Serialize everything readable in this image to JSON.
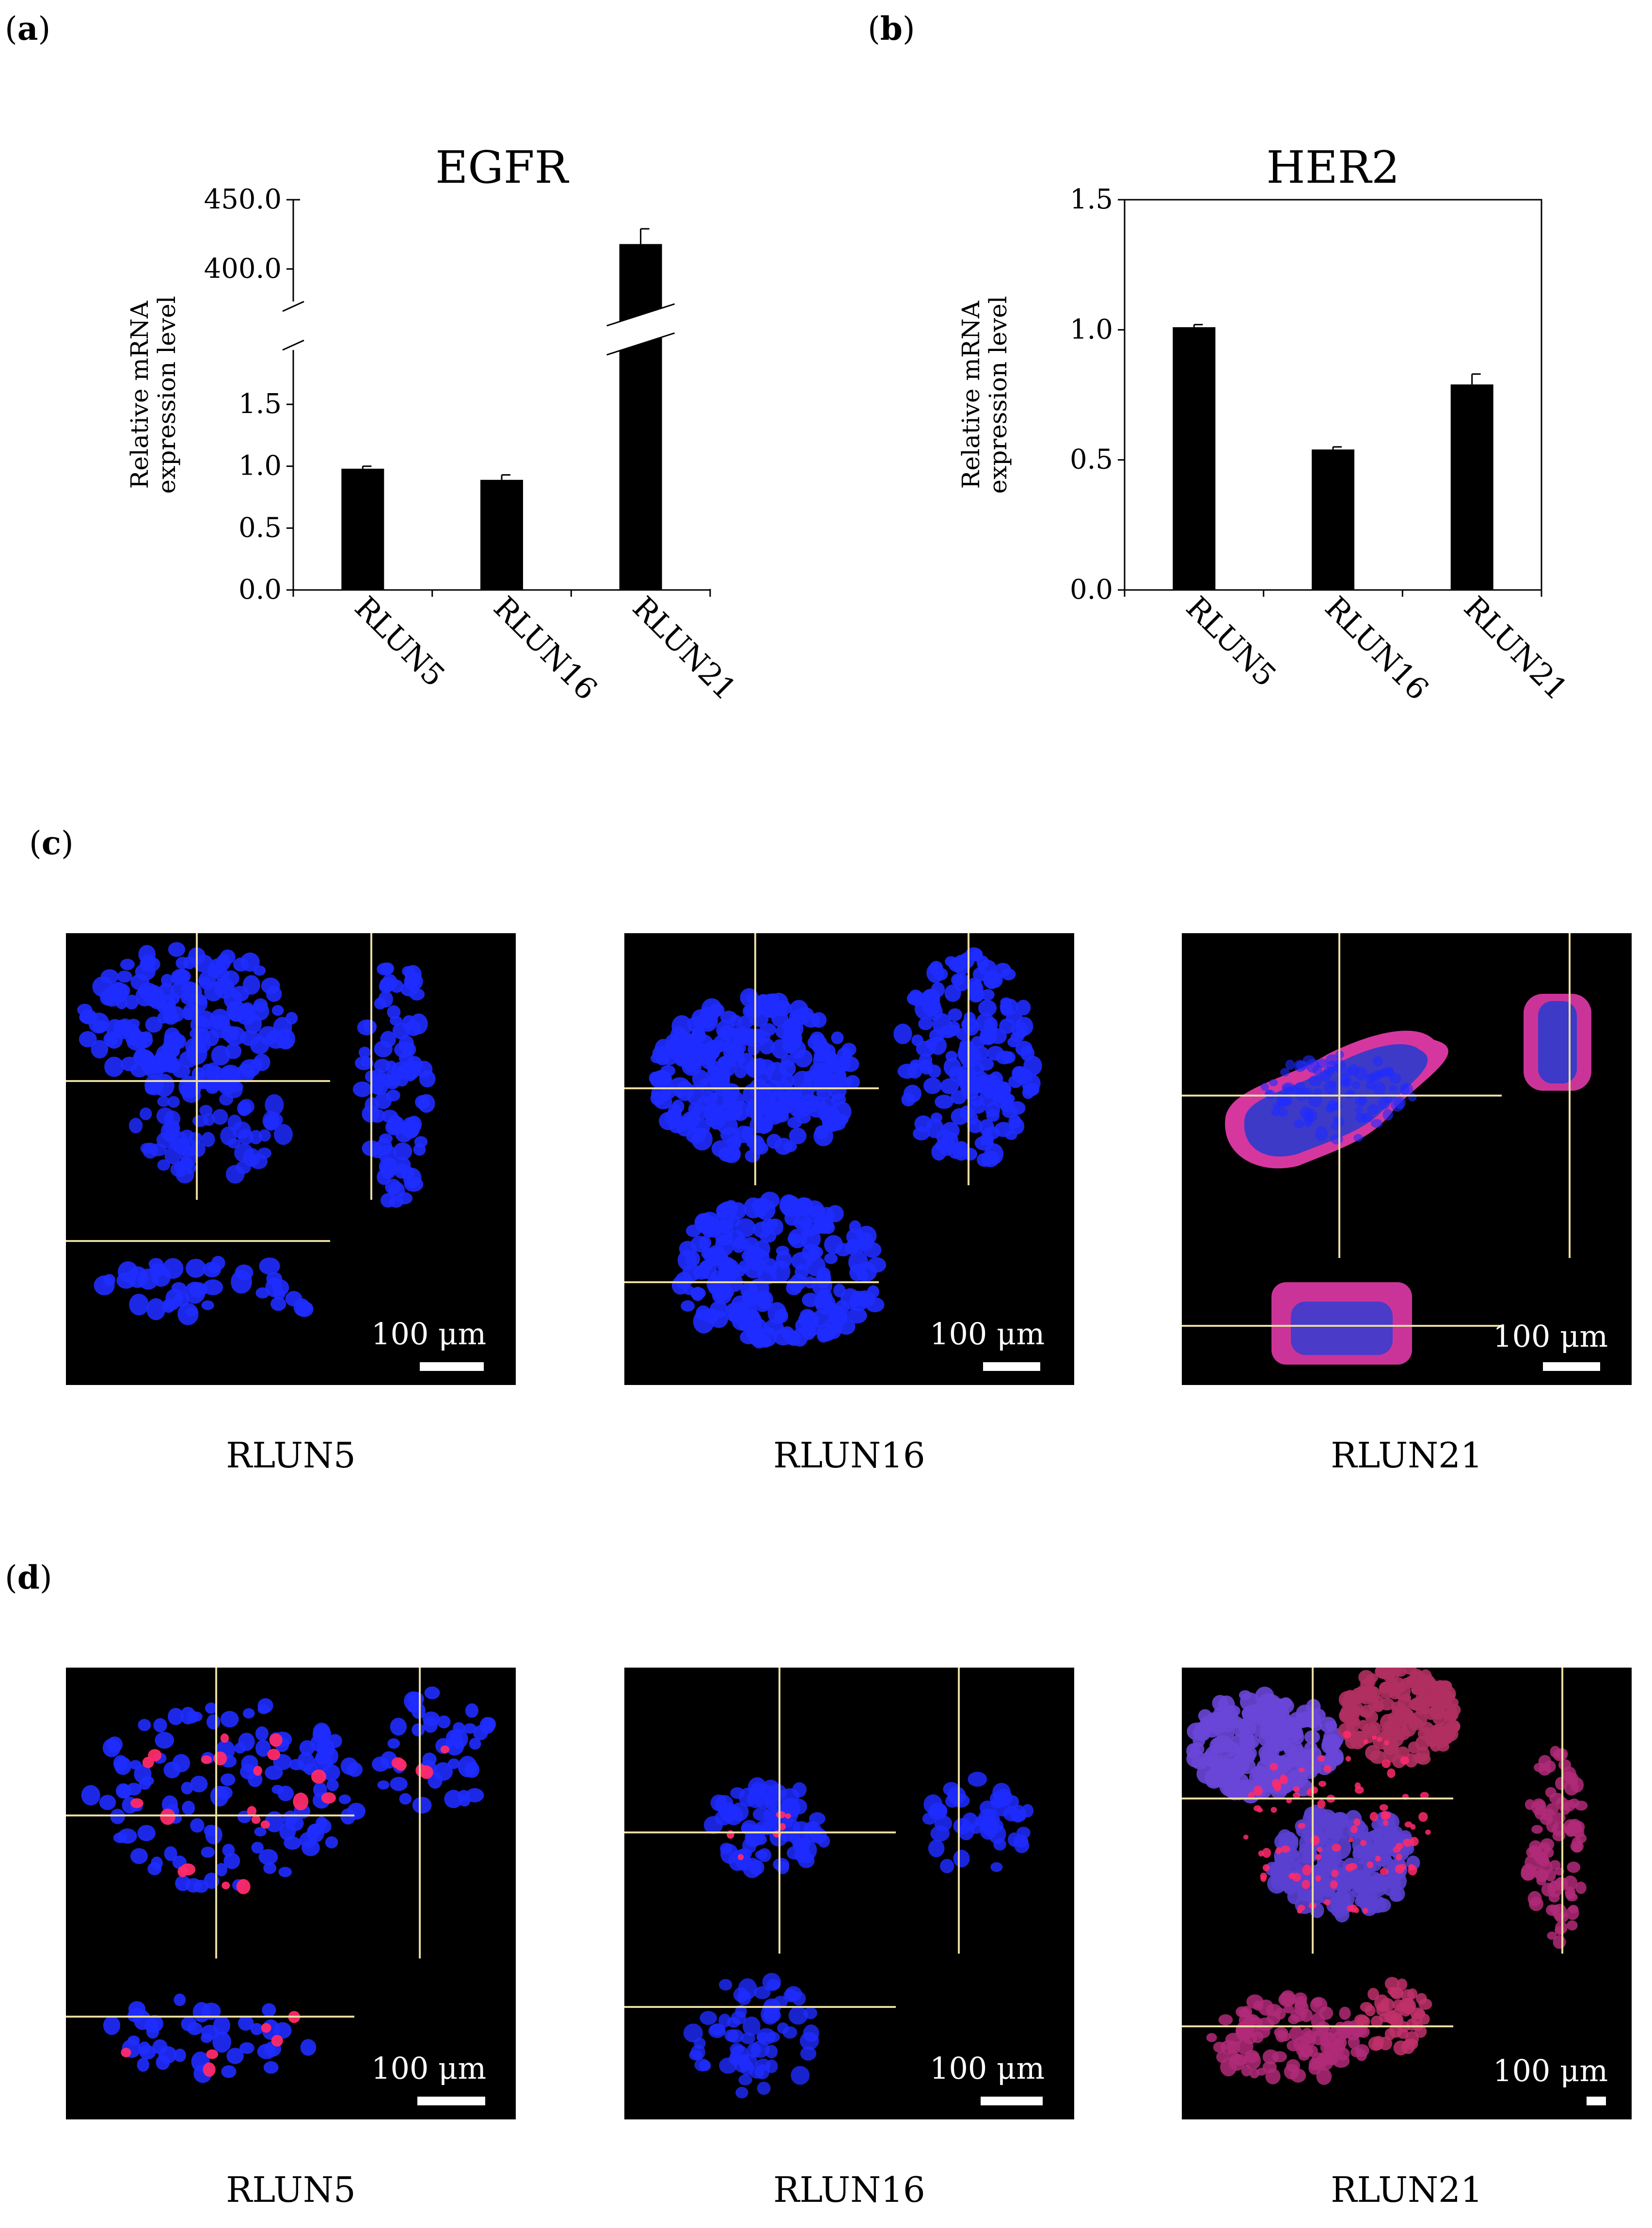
{
  "panels": {
    "a": "a",
    "b": "b",
    "c": "c",
    "d": "d"
  },
  "chart_data": [
    {
      "type": "bar",
      "title": "EGFR",
      "ylabel": "Relative mRNA expression level",
      "ylabel_lines": [
        "Relative mRNA",
        "expression level"
      ],
      "categories": [
        "RLUN5",
        "RLUN16",
        "RLUN21"
      ],
      "values": [
        0.98,
        0.89,
        418.0
      ],
      "errors": [
        0.02,
        0.04,
        11.0
      ],
      "axis_break": true,
      "lower_ylim": [
        0,
        1.9
      ],
      "upper_ylim": [
        380,
        450
      ],
      "lower_ticks": [
        "0.0",
        "0.5",
        "1.0",
        "1.5"
      ],
      "upper_ticks": [
        "400.0",
        "450.0"
      ],
      "bar_color": "#000000"
    },
    {
      "type": "bar",
      "title": "HER2",
      "ylabel": "Relative mRNA expression level",
      "ylabel_lines": [
        "Relative mRNA",
        "expression level"
      ],
      "categories": [
        "RLUN5",
        "RLUN16",
        "RLUN21"
      ],
      "values": [
        1.01,
        0.54,
        0.79
      ],
      "errors": [
        0.01,
        0.01,
        0.04
      ],
      "ylim": [
        0,
        1.5
      ],
      "ticks": [
        "0.0",
        "0.5",
        "1.0",
        "1.5"
      ],
      "bar_color": "#000000"
    }
  ],
  "micrographs": {
    "scale_label": "100 μm",
    "row_c": {
      "captions": [
        "RLUN5",
        "RLUN16",
        "RLUN21"
      ]
    },
    "row_d": {
      "captions": [
        "RLUN5",
        "RLUN16",
        "RLUN21"
      ]
    },
    "colors": {
      "nuclei": "#1f2cff",
      "signal": "#ff2a6a",
      "crosshair": "#e8dca0"
    }
  }
}
